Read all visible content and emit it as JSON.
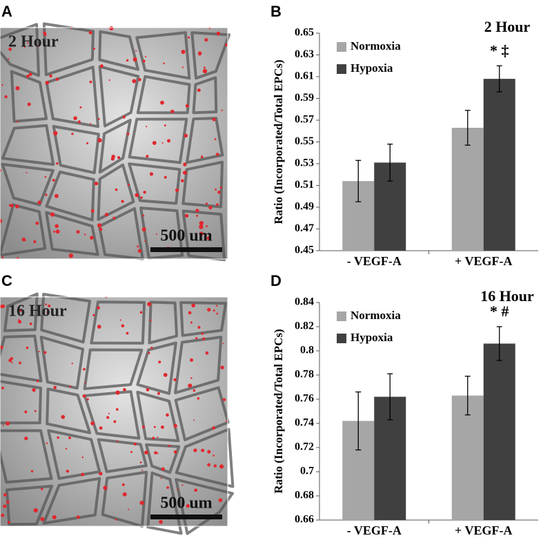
{
  "panels": [
    {
      "letter": "A",
      "label": "2 Hour",
      "scale_bar": "500 um"
    },
    {
      "letter": "C",
      "label": "16 Hour",
      "scale_bar": "500 um"
    }
  ],
  "chart_data": [
    {
      "type": "bar",
      "panel": "B",
      "title": "2 Hour",
      "y_label": "Ratio (Incorporated/Total EPCs)",
      "categories": [
        "-  VEGF-A",
        "+ VEGF-A"
      ],
      "series": [
        {
          "name": "Normoxia",
          "color": "#a6a6a6",
          "values": [
            0.514,
            0.563
          ],
          "errors": [
            0.019,
            0.016
          ]
        },
        {
          "name": "Hypoxia",
          "color": "#404040",
          "values": [
            0.531,
            0.608
          ],
          "errors": [
            0.017,
            0.012
          ]
        }
      ],
      "annotation": "* ‡",
      "ylim": [
        0.45,
        0.65
      ],
      "yticks": [
        0.45,
        0.47,
        0.49,
        0.51,
        0.53,
        0.55,
        0.57,
        0.59,
        0.61,
        0.63,
        0.65
      ],
      "legend": "upper left",
      "grid": false
    },
    {
      "type": "bar",
      "panel": "D",
      "title": "16 Hour",
      "y_label": "Ratio (Incorporated/Total EPCs)",
      "categories": [
        "-  VEGF-A",
        "+ VEGF-A"
      ],
      "series": [
        {
          "name": "Normoxia",
          "color": "#a6a6a6",
          "values": [
            0.742,
            0.763
          ],
          "errors": [
            0.024,
            0.016
          ]
        },
        {
          "name": "Hypoxia",
          "color": "#404040",
          "values": [
            0.762,
            0.806
          ],
          "errors": [
            0.019,
            0.014
          ]
        }
      ],
      "annotation": "* #",
      "ylim": [
        0.66,
        0.84
      ],
      "yticks": [
        0.66,
        0.68,
        0.7,
        0.72,
        0.74,
        0.76,
        0.78,
        0.8,
        0.82,
        0.84
      ],
      "legend": "upper left",
      "grid": false
    }
  ]
}
